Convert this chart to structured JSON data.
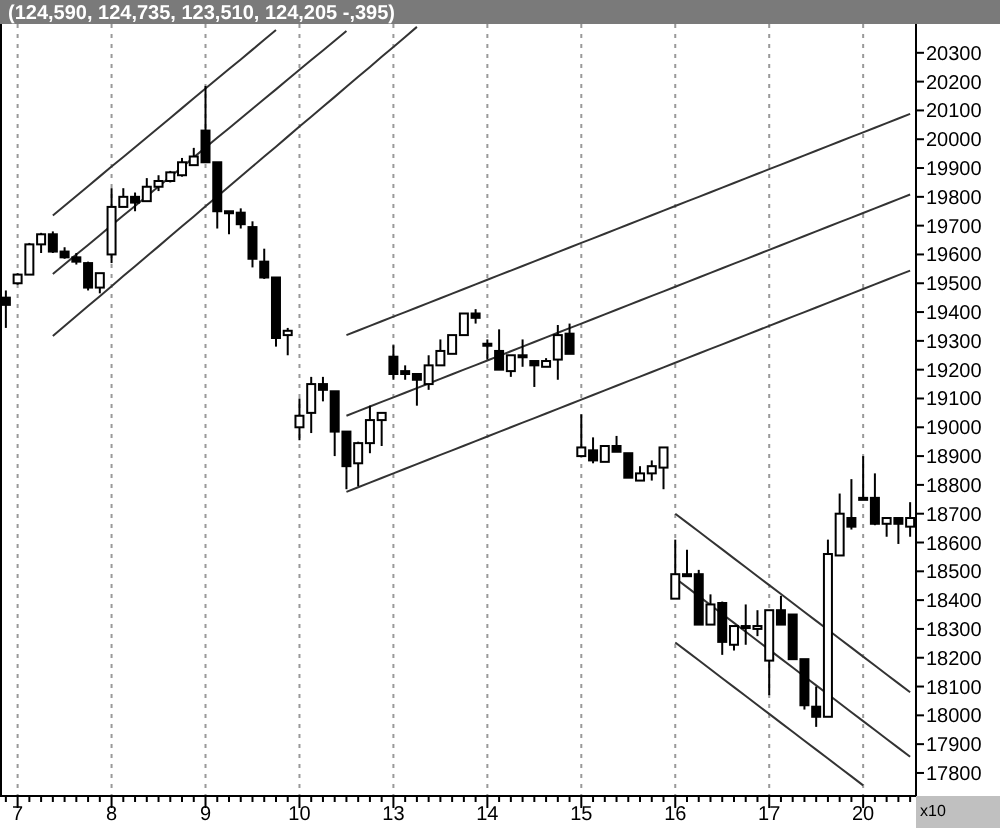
{
  "chart_data": {
    "type": "candlestick",
    "title": "(124,590, 124,735, 123,510, 124,205 -,395)",
    "color": "#000000",
    "grid": "x",
    "annotations": [
      "x10"
    ],
    "ylim": [
      17720,
      20400
    ],
    "yticks": [
      17800,
      17900,
      18000,
      18100,
      18200,
      18300,
      18400,
      18500,
      18600,
      18700,
      18800,
      18900,
      19000,
      19100,
      19200,
      19300,
      19400,
      19500,
      19600,
      19700,
      19800,
      19900,
      20000,
      20100,
      20200,
      20300
    ],
    "categories": [
      null,
      "7",
      null,
      null,
      null,
      null,
      null,
      null,
      null,
      "8",
      null,
      null,
      null,
      null,
      null,
      null,
      null,
      "9",
      null,
      null,
      null,
      null,
      null,
      null,
      null,
      "10",
      null,
      null,
      null,
      null,
      null,
      null,
      null,
      "13",
      null,
      null,
      null,
      null,
      null,
      null,
      null,
      "14",
      null,
      null,
      null,
      null,
      null,
      null,
      null,
      "15",
      null,
      null,
      null,
      null,
      null,
      null,
      null,
      "16",
      null,
      null,
      null,
      null,
      null,
      null,
      null,
      "17",
      null,
      null,
      null,
      null,
      null,
      null,
      null,
      "20",
      null,
      null,
      null,
      null
    ],
    "ohlc": [
      [
        19450,
        19475,
        19345,
        19425
      ],
      [
        19500,
        19535,
        19495,
        19530
      ],
      [
        19530,
        19640,
        19530,
        19635
      ],
      [
        19635,
        19675,
        19605,
        19670
      ],
      [
        19670,
        19680,
        19605,
        19610
      ],
      [
        19610,
        19625,
        19585,
        19590
      ],
      [
        19590,
        19605,
        19565,
        19575
      ],
      [
        19570,
        19575,
        19475,
        19485
      ],
      [
        19485,
        19535,
        19465,
        19535
      ],
      [
        19600,
        19830,
        19570,
        19765
      ],
      [
        19765,
        19830,
        19765,
        19800
      ],
      [
        19800,
        19815,
        19750,
        19780
      ],
      [
        19785,
        19865,
        19785,
        19835
      ],
      [
        19835,
        19875,
        19820,
        19855
      ],
      [
        19855,
        19890,
        19850,
        19885
      ],
      [
        19875,
        19935,
        19870,
        19920
      ],
      [
        19910,
        19970,
        19910,
        19940
      ],
      [
        20030,
        20185,
        19920,
        19920
      ],
      [
        19920,
        19920,
        19690,
        19750
      ],
      [
        19750,
        19750,
        19670,
        19745
      ],
      [
        19745,
        19760,
        19690,
        19705
      ],
      [
        19695,
        19715,
        19555,
        19585
      ],
      [
        19575,
        19620,
        19515,
        19520
      ],
      [
        19520,
        19520,
        19280,
        19310
      ],
      [
        19320,
        19345,
        19250,
        19335
      ],
      [
        19000,
        19100,
        18955,
        19040
      ],
      [
        19050,
        19175,
        18980,
        19150
      ],
      [
        19150,
        19175,
        19090,
        19130
      ],
      [
        19125,
        19125,
        18900,
        18985
      ],
      [
        18985,
        18985,
        18785,
        18865
      ],
      [
        18875,
        18950,
        18795,
        18945
      ],
      [
        18945,
        19075,
        18910,
        19025
      ],
      [
        19025,
        19050,
        18935,
        19050
      ],
      [
        19245,
        19285,
        19165,
        19185
      ],
      [
        19195,
        19215,
        19165,
        19185
      ],
      [
        19185,
        19185,
        19075,
        19165
      ],
      [
        19150,
        19250,
        19130,
        19215
      ],
      [
        19215,
        19305,
        19215,
        19265
      ],
      [
        19255,
        19320,
        19255,
        19320
      ],
      [
        19320,
        19395,
        19320,
        19395
      ],
      [
        19395,
        19410,
        19360,
        19380
      ],
      [
        19290,
        19305,
        19235,
        19285
      ],
      [
        19265,
        19340,
        19200,
        19200
      ],
      [
        19195,
        19250,
        19175,
        19250
      ],
      [
        19245,
        19305,
        19210,
        19250
      ],
      [
        19230,
        19230,
        19140,
        19215
      ],
      [
        19210,
        19240,
        19210,
        19230
      ],
      [
        19235,
        19355,
        19165,
        19320
      ],
      [
        19325,
        19360,
        19255,
        19255
      ],
      [
        18900,
        19045,
        18900,
        18930
      ],
      [
        18920,
        18965,
        18875,
        18885
      ],
      [
        18880,
        18935,
        18880,
        18935
      ],
      [
        18935,
        18970,
        18915,
        18915
      ],
      [
        18910,
        18910,
        18825,
        18825
      ],
      [
        18815,
        18865,
        18815,
        18840
      ],
      [
        18840,
        18885,
        18815,
        18865
      ],
      [
        18860,
        18930,
        18785,
        18930
      ],
      [
        18405,
        18610,
        18405,
        18490
      ],
      [
        18490,
        18575,
        18480,
        18485
      ],
      [
        18490,
        18505,
        18315,
        18315
      ],
      [
        18315,
        18420,
        18315,
        18385
      ],
      [
        18390,
        18395,
        18210,
        18255
      ],
      [
        18245,
        18310,
        18225,
        18310
      ],
      [
        18305,
        18385,
        18245,
        18310
      ],
      [
        18300,
        18365,
        18275,
        18310
      ],
      [
        18190,
        18365,
        18070,
        18365
      ],
      [
        18365,
        18415,
        18315,
        18315
      ],
      [
        18350,
        18350,
        18195,
        18195
      ],
      [
        18195,
        18195,
        18020,
        18035
      ],
      [
        18030,
        18100,
        17960,
        17995
      ],
      [
        17995,
        18610,
        17995,
        18560
      ],
      [
        18555,
        18770,
        18555,
        18700
      ],
      [
        18685,
        18820,
        18645,
        18655
      ],
      [
        18755,
        18900,
        18750,
        18755
      ],
      [
        18755,
        18840,
        18660,
        18665
      ],
      [
        18665,
        18685,
        18620,
        18685
      ],
      [
        18685,
        18685,
        18595,
        18665
      ],
      [
        18655,
        18740,
        18620,
        18685
      ]
    ],
    "series": [
      {
        "type": "line",
        "color": "#333333",
        "values": [
          null,
          null,
          null,
          null,
          19735,
          19769,
          19803,
          19837,
          19871,
          19905,
          19938,
          19972,
          20006,
          20040,
          20074,
          20108,
          20142,
          20176,
          20210,
          20244,
          20277,
          20311,
          20345,
          20379,
          null,
          null,
          null,
          null,
          null,
          null,
          null,
          null,
          null,
          null,
          null,
          null,
          null,
          null,
          null,
          null,
          null,
          null,
          null,
          null,
          null,
          null,
          null,
          null,
          null,
          null,
          null,
          null,
          null,
          null,
          null,
          null,
          null,
          null,
          null,
          null,
          null,
          null,
          null,
          null,
          null,
          null,
          null,
          null,
          null,
          null,
          null,
          null,
          null,
          null,
          null,
          null,
          null,
          null
        ]
      },
      {
        "type": "line",
        "color": "#333333",
        "values": [
          null,
          null,
          null,
          null,
          19532,
          19566,
          19600,
          19633,
          19667,
          19701,
          19735,
          19768,
          19802,
          19836,
          19870,
          19903,
          19937,
          19971,
          20005,
          20038,
          20072,
          20106,
          20140,
          20173,
          20207,
          20241,
          20275,
          20308,
          20342,
          20376,
          null,
          null,
          null,
          null,
          null,
          null,
          null,
          null,
          null,
          null,
          null,
          null,
          null,
          null,
          null,
          null,
          null,
          null,
          null,
          null,
          null,
          null,
          null,
          null,
          null,
          null,
          null,
          null,
          null,
          null,
          null,
          null,
          null,
          null,
          null,
          null,
          null,
          null,
          null,
          null,
          null,
          null,
          null,
          null,
          null,
          null,
          null,
          null
        ]
      },
      {
        "type": "line",
        "color": "#333333",
        "values": [
          null,
          null,
          null,
          null,
          19317,
          19352,
          19386,
          19421,
          19455,
          19490,
          19525,
          19559,
          19594,
          19628,
          19663,
          19698,
          19732,
          19767,
          19801,
          19836,
          19871,
          19905,
          19940,
          19974,
          20009,
          20044,
          20078,
          20113,
          20147,
          20182,
          20217,
          20251,
          20286,
          20320,
          20355,
          20390,
          null,
          null,
          null,
          null,
          null,
          null,
          null,
          null,
          null,
          null,
          null,
          null,
          null,
          null,
          null,
          null,
          null,
          null,
          null,
          null,
          null,
          null,
          null,
          null,
          null,
          null,
          null,
          null,
          null,
          null,
          null,
          null,
          null,
          null,
          null,
          null,
          null,
          null,
          null,
          null,
          null,
          null
        ]
      },
      {
        "type": "line",
        "color": "#333333",
        "values": [
          null,
          null,
          null,
          null,
          null,
          null,
          null,
          null,
          null,
          null,
          null,
          null,
          null,
          null,
          null,
          null,
          null,
          null,
          null,
          null,
          null,
          null,
          null,
          null,
          null,
          null,
          null,
          null,
          null,
          19320,
          19336,
          19352,
          19368,
          19384,
          19400,
          19416,
          19432,
          19448,
          19464,
          19480,
          19496,
          19512,
          19528,
          19544,
          19560,
          19576,
          19592,
          19608,
          19624,
          19640,
          19656,
          19672,
          19688,
          19704,
          19720,
          19736,
          19752,
          19768,
          19784,
          19800,
          19816,
          19832,
          19848,
          19864,
          19880,
          19896,
          19912,
          19928,
          19944,
          19960,
          19976,
          19992,
          20008,
          20024,
          20040,
          20056,
          20072,
          20088
        ]
      },
      {
        "type": "line",
        "color": "#333333",
        "values": [
          null,
          null,
          null,
          null,
          null,
          null,
          null,
          null,
          null,
          null,
          null,
          null,
          null,
          null,
          null,
          null,
          null,
          null,
          null,
          null,
          null,
          null,
          null,
          null,
          null,
          null,
          null,
          null,
          null,
          19040,
          19056,
          19072,
          19088,
          19104,
          19120,
          19136,
          19152,
          19168,
          19184,
          19200,
          19216,
          19232,
          19248,
          19264,
          19280,
          19296,
          19312,
          19328,
          19344,
          19360,
          19376,
          19392,
          19408,
          19424,
          19440,
          19456,
          19472,
          19488,
          19504,
          19520,
          19536,
          19552,
          19568,
          19584,
          19600,
          19616,
          19632,
          19648,
          19664,
          19680,
          19696,
          19712,
          19728,
          19744,
          19760,
          19776,
          19792,
          19808
        ]
      },
      {
        "type": "line",
        "color": "#333333",
        "values": [
          null,
          null,
          null,
          null,
          null,
          null,
          null,
          null,
          null,
          null,
          null,
          null,
          null,
          null,
          null,
          null,
          null,
          null,
          null,
          null,
          null,
          null,
          null,
          null,
          null,
          null,
          null,
          null,
          null,
          18776,
          18792,
          18808,
          18824,
          18840,
          18856,
          18872,
          18888,
          18904,
          18920,
          18936,
          18952,
          18968,
          18984,
          19000,
          19016,
          19032,
          19048,
          19064,
          19080,
          19096,
          19112,
          19128,
          19144,
          19160,
          19176,
          19192,
          19208,
          19224,
          19240,
          19256,
          19272,
          19288,
          19304,
          19320,
          19336,
          19352,
          19368,
          19384,
          19400,
          19416,
          19432,
          19448,
          19464,
          19480,
          19496,
          19512,
          19528,
          19544
        ]
      },
      {
        "type": "line",
        "color": "#333333",
        "values": [
          null,
          null,
          null,
          null,
          null,
          null,
          null,
          null,
          null,
          null,
          null,
          null,
          null,
          null,
          null,
          null,
          null,
          null,
          null,
          null,
          null,
          null,
          null,
          null,
          null,
          null,
          null,
          null,
          null,
          null,
          null,
          null,
          null,
          null,
          null,
          null,
          null,
          null,
          null,
          null,
          null,
          null,
          null,
          null,
          null,
          null,
          null,
          null,
          null,
          null,
          null,
          null,
          null,
          null,
          null,
          null,
          null,
          18700,
          18669,
          18638,
          18607,
          18576,
          18545,
          18514,
          18483,
          18452,
          18421,
          18390,
          18359,
          18328,
          18297,
          18266,
          18235,
          18204,
          18173,
          18142,
          18111,
          18080
        ]
      },
      {
        "type": "line",
        "color": "#333333",
        "values": [
          null,
          null,
          null,
          null,
          null,
          null,
          null,
          null,
          null,
          null,
          null,
          null,
          null,
          null,
          null,
          null,
          null,
          null,
          null,
          null,
          null,
          null,
          null,
          null,
          null,
          null,
          null,
          null,
          null,
          null,
          null,
          null,
          null,
          null,
          null,
          null,
          null,
          null,
          null,
          null,
          null,
          null,
          null,
          null,
          null,
          null,
          null,
          null,
          null,
          null,
          null,
          null,
          null,
          null,
          null,
          null,
          null,
          18476,
          18445,
          18414,
          18383,
          18352,
          18321,
          18290,
          18259,
          18228,
          18197,
          18166,
          18135,
          18104,
          18073,
          18042,
          18011,
          17980,
          17949,
          17918,
          17887,
          17856
        ]
      },
      {
        "type": "line",
        "color": "#333333",
        "values": [
          null,
          null,
          null,
          null,
          null,
          null,
          null,
          null,
          null,
          null,
          null,
          null,
          null,
          null,
          null,
          null,
          null,
          null,
          null,
          null,
          null,
          null,
          null,
          null,
          null,
          null,
          null,
          null,
          null,
          null,
          null,
          null,
          null,
          null,
          null,
          null,
          null,
          null,
          null,
          null,
          null,
          null,
          null,
          null,
          null,
          null,
          null,
          null,
          null,
          null,
          null,
          null,
          null,
          null,
          null,
          null,
          null,
          18253,
          18222,
          18191,
          18160,
          18129,
          18098,
          18067,
          18036,
          18005,
          17974,
          17943,
          17912,
          17881,
          17850,
          17819,
          17788,
          17757,
          null,
          null,
          null,
          null
        ]
      }
    ]
  }
}
